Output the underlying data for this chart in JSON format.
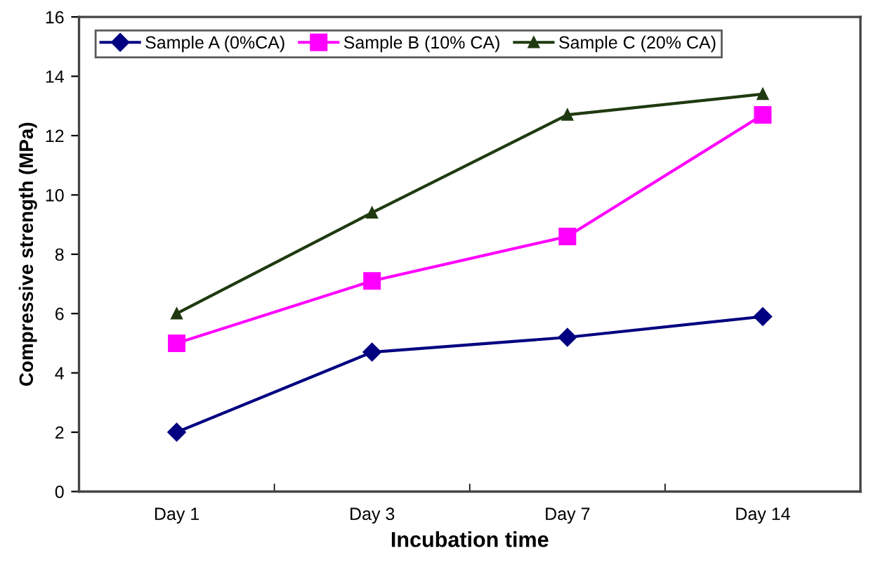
{
  "chart_data": {
    "type": "line",
    "xlabel": "Incubation time",
    "ylabel": "Compressive strength (MPa)",
    "categories": [
      "Day 1",
      "Day 3",
      "Day 7",
      "Day 14"
    ],
    "series": [
      {
        "name": "Sample A (0%CA)",
        "color": "#000080",
        "marker": "diamond",
        "values": [
          2.0,
          4.7,
          5.2,
          5.9
        ]
      },
      {
        "name": "Sample B (10% CA)",
        "color": "#ff00ff",
        "marker": "square",
        "values": [
          5.0,
          7.1,
          8.6,
          12.7
        ]
      },
      {
        "name": "Sample C (20% CA)",
        "color": "#1f3a10",
        "marker": "triangle",
        "values": [
          6.0,
          9.4,
          12.7,
          13.4
        ]
      }
    ],
    "ylim": [
      0,
      16
    ],
    "yticks": [
      0,
      2,
      4,
      6,
      8,
      10,
      12,
      14,
      16
    ],
    "grid": false,
    "legend": "top left",
    "line_style": "solid"
  }
}
